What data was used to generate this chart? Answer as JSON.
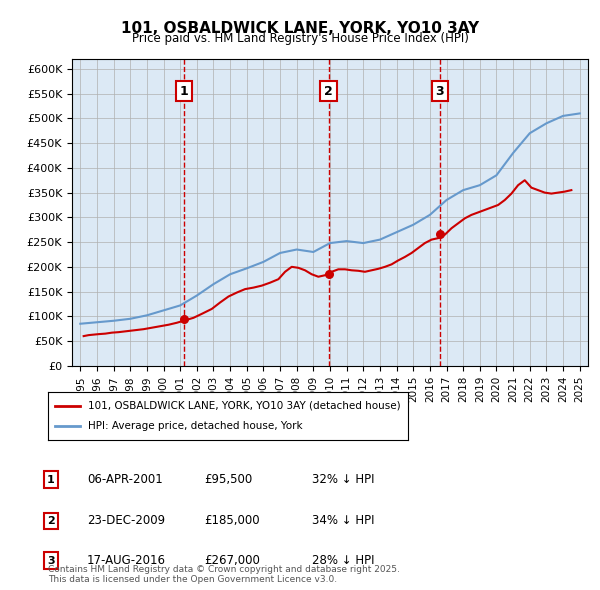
{
  "title": "101, OSBALDWICK LANE, YORK, YO10 3AY",
  "subtitle": "Price paid vs. HM Land Registry's House Price Index (HPI)",
  "background_color": "#dce9f5",
  "plot_bg_color": "#dce9f5",
  "hpi_color": "#6699cc",
  "price_color": "#cc0000",
  "ylim": [
    0,
    620000
  ],
  "yticks": [
    0,
    50000,
    100000,
    150000,
    200000,
    250000,
    300000,
    350000,
    400000,
    450000,
    500000,
    550000,
    600000
  ],
  "transaction_dates": [
    "2001-04-06",
    "2009-12-23",
    "2016-08-17"
  ],
  "transaction_prices": [
    95500,
    185000,
    267000
  ],
  "transaction_labels": [
    "1",
    "2",
    "3"
  ],
  "legend_price_label": "101, OSBALDWICK LANE, YORK, YO10 3AY (detached house)",
  "legend_hpi_label": "HPI: Average price, detached house, York",
  "table_data": [
    [
      "1",
      "06-APR-2001",
      "£95,500",
      "32% ↓ HPI"
    ],
    [
      "2",
      "23-DEC-2009",
      "£185,000",
      "34% ↓ HPI"
    ],
    [
      "3",
      "17-AUG-2016",
      "£267,000",
      "28% ↓ HPI"
    ]
  ],
  "footnote": "Contains HM Land Registry data © Crown copyright and database right 2025.\nThis data is licensed under the Open Government Licence v3.0.",
  "hpi_years": [
    1995,
    1996,
    1997,
    1998,
    1999,
    2000,
    2001,
    2002,
    2003,
    2004,
    2005,
    2006,
    2007,
    2008,
    2009,
    2010,
    2011,
    2012,
    2013,
    2014,
    2015,
    2016,
    2017,
    2018,
    2019,
    2020,
    2021,
    2022,
    2023,
    2024,
    2025
  ],
  "hpi_values": [
    85000,
    88000,
    91000,
    95000,
    102000,
    112000,
    122000,
    142000,
    165000,
    185000,
    197000,
    210000,
    228000,
    235000,
    230000,
    248000,
    252000,
    248000,
    255000,
    270000,
    285000,
    305000,
    335000,
    355000,
    365000,
    385000,
    430000,
    470000,
    490000,
    505000,
    510000
  ],
  "price_paid_years": [
    1995.2,
    1995.5,
    1995.8,
    1996.1,
    1996.5,
    1996.9,
    1997.3,
    1997.8,
    1998.3,
    1998.8,
    1999.3,
    1999.8,
    2000.3,
    2000.8,
    2001.3,
    2001.8,
    2002.3,
    2002.9,
    2003.4,
    2003.9,
    2004.4,
    2004.9,
    2005.4,
    2005.9,
    2006.4,
    2006.9,
    2007.3,
    2007.7,
    2008.1,
    2008.5,
    2008.9,
    2009.3,
    2009.7,
    2010.1,
    2010.5,
    2010.9,
    2011.3,
    2011.7,
    2012.1,
    2012.5,
    2012.9,
    2013.3,
    2013.7,
    2014.1,
    2014.5,
    2014.9,
    2015.3,
    2015.7,
    2016.1,
    2016.5,
    2016.9,
    2017.3,
    2017.7,
    2018.1,
    2018.5,
    2018.9,
    2019.3,
    2019.7,
    2020.1,
    2020.5,
    2020.9,
    2021.3,
    2021.7,
    2022.1,
    2022.5,
    2022.9,
    2023.3,
    2023.7,
    2024.1,
    2024.5
  ],
  "price_paid_values": [
    60000,
    62000,
    63000,
    64000,
    65000,
    67000,
    68000,
    70000,
    72000,
    74000,
    77000,
    80000,
    83000,
    87000,
    92000,
    97000,
    105000,
    115000,
    128000,
    140000,
    148000,
    155000,
    158000,
    162000,
    168000,
    175000,
    190000,
    200000,
    198000,
    193000,
    185000,
    180000,
    183000,
    190000,
    195000,
    195000,
    193000,
    192000,
    190000,
    193000,
    196000,
    200000,
    205000,
    213000,
    220000,
    228000,
    238000,
    248000,
    255000,
    258000,
    265000,
    278000,
    288000,
    298000,
    305000,
    310000,
    315000,
    320000,
    325000,
    335000,
    348000,
    365000,
    375000,
    360000,
    355000,
    350000,
    348000,
    350000,
    352000,
    355000
  ]
}
